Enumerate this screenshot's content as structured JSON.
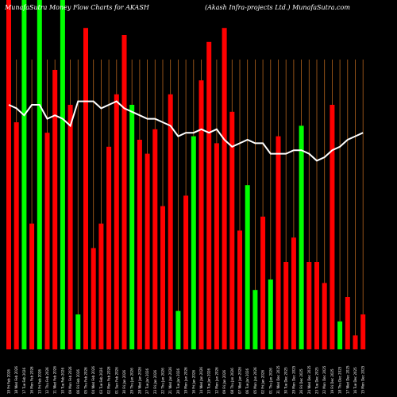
{
  "header": {
    "left": "MunafaSutra  Money Flow  Charts for AKASH",
    "right": "(Akash Infra-projects Ltd.) MunafaSutra.com"
  },
  "chart_data": {
    "type": "bar",
    "title": "MunafaSutra  Money Flow  Charts for AKASH",
    "subtitle": "(Akash Infra-projects Ltd.) MunafaSutra.com",
    "ylim": [
      0,
      100
    ],
    "categories": [
      "19 Fri Feb 2026",
      "18 Wed Feb 2026",
      "17 Tue Feb 2026",
      "16 Mon Feb 2026",
      "13 Fri Feb 2026",
      "12 Thu Feb 2026",
      "11 Wed Feb 2026",
      "10 Tue Feb 2026",
      "09 Mon Feb 2026",
      "06 Fri Feb 2026",
      "05 Thu Feb 2026",
      "04 Wed Feb 2026",
      "03 Tue Feb 2026",
      "02 Mon Feb 2026",
      "01 Sun Feb 2026",
      "30 Fri Jan 2026",
      "29 Thu Jan 2026",
      "28 Wed Jan 2026",
      "27 Tue Jan 2026",
      "23 Fri Jan 2026",
      "22 Thu Jan 2026",
      "21 Wed Jan 2026",
      "20 Tue Jan 2026",
      "19 Mon Jan 2026",
      "16 Fri Jan 2026",
      "14 Wed Jan 2026",
      "13 Tue Jan 2026",
      "12 Mon Jan 2026",
      "09 Fri Jan 2026",
      "08 Thu Jan 2026",
      "07 Wed Jan 2026",
      "06 Tue Jan 2026",
      "05 Mon Jan 2026",
      "02 Fri Jan 2026",
      "01 Thu Jan 2026",
      "31 Wed Dec 2025",
      "30 Tue Dec 2025",
      "29 Mon Dec 2025",
      "26 Fri Dec 2025",
      "24 Wed Dec 2025",
      "23 Tue Dec 2025",
      "22 Mon Dec 2025",
      "19 Fri Dec 2025",
      "18 Thu Dec 2025",
      "17 Wed Dec 2025",
      "16 Tue Dec 2025",
      "15 Mon Dec 2025"
    ],
    "values": [
      100,
      65,
      100,
      36,
      100,
      62,
      80,
      100,
      70,
      10,
      92,
      29,
      36,
      58,
      73,
      90,
      70,
      60,
      56,
      63,
      41,
      73,
      11,
      44,
      61,
      77,
      88,
      59,
      92,
      68,
      34,
      47,
      17,
      38,
      20,
      61,
      25,
      32,
      64,
      25,
      25,
      19,
      70,
      8,
      15,
      4,
      10
    ],
    "direction": [
      "red",
      "red",
      "green",
      "red",
      "green",
      "red",
      "red",
      "green",
      "red",
      "green",
      "red",
      "red",
      "red",
      "red",
      "red",
      "red",
      "green",
      "red",
      "red",
      "red",
      "red",
      "red",
      "green",
      "red",
      "green",
      "red",
      "red",
      "red",
      "red",
      "red",
      "red",
      "green",
      "green",
      "red",
      "green",
      "red",
      "red",
      "red",
      "green",
      "red",
      "red",
      "red",
      "red",
      "green",
      "red",
      "red",
      "red"
    ],
    "ma_line": [
      70,
      69,
      67,
      70,
      70,
      66,
      67,
      66,
      64,
      71,
      71,
      71,
      69,
      70,
      71,
      69,
      68,
      67,
      66,
      66,
      65,
      64,
      61,
      62,
      62,
      63,
      62,
      63,
      60,
      58,
      59,
      60,
      59,
      59,
      56,
      56,
      56,
      57,
      57,
      56,
      54,
      55,
      57,
      58,
      60,
      61,
      62
    ],
    "colors": {
      "up": "#00ff00",
      "down": "#ff0000",
      "line": "#ffffff",
      "grid": "#b5651d",
      "background": "#000000"
    }
  }
}
